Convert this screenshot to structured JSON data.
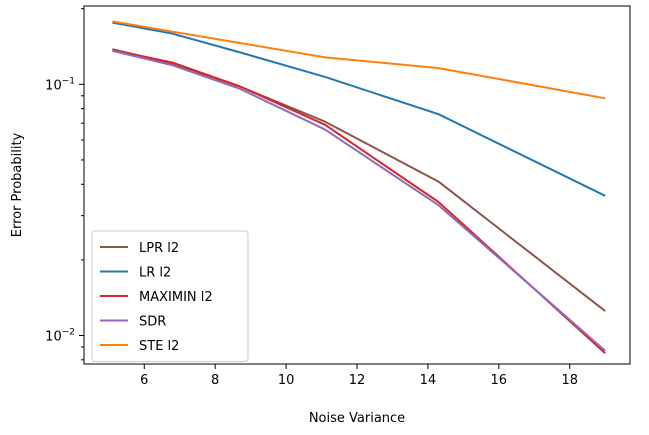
{
  "chart_data": {
    "type": "line",
    "xlabel": "Noise Variance",
    "ylabel": "Error Probability",
    "y_scale": "log",
    "xlim": [
      4.3,
      19.7
    ],
    "ylim": [
      0.0077,
      0.205
    ],
    "x_ticks": [
      6,
      8,
      10,
      12,
      14,
      16,
      18
    ],
    "y_ticks": [
      {
        "value": 0.1,
        "base": "10",
        "exp": "−1"
      },
      {
        "value": 0.01,
        "base": "10",
        "exp": "−2"
      }
    ],
    "grid": false,
    "legend_position": "lower-left",
    "x": [
      5.1,
      6.8,
      8.7,
      11.1,
      14.3,
      19.0
    ],
    "series": [
      {
        "name": "LPR l2",
        "color": "#8c564b",
        "values": [
          0.138,
          0.121,
          0.098,
          0.071,
          0.041,
          0.0125
        ]
      },
      {
        "name": "LR l2",
        "color": "#1f77b4",
        "values": [
          0.176,
          0.159,
          0.134,
          0.107,
          0.076,
          0.036
        ]
      },
      {
        "name": "MAXIMIN l2",
        "color": "#d62728",
        "values": [
          0.137,
          0.122,
          0.098,
          0.069,
          0.034,
          0.0085
        ]
      },
      {
        "name": "SDR",
        "color": "#9467bd",
        "values": [
          0.136,
          0.119,
          0.096,
          0.066,
          0.033,
          0.0087
        ]
      },
      {
        "name": "STE l2",
        "color": "#ff7f0e",
        "values": [
          0.178,
          0.162,
          0.146,
          0.128,
          0.116,
          0.088
        ]
      }
    ]
  }
}
